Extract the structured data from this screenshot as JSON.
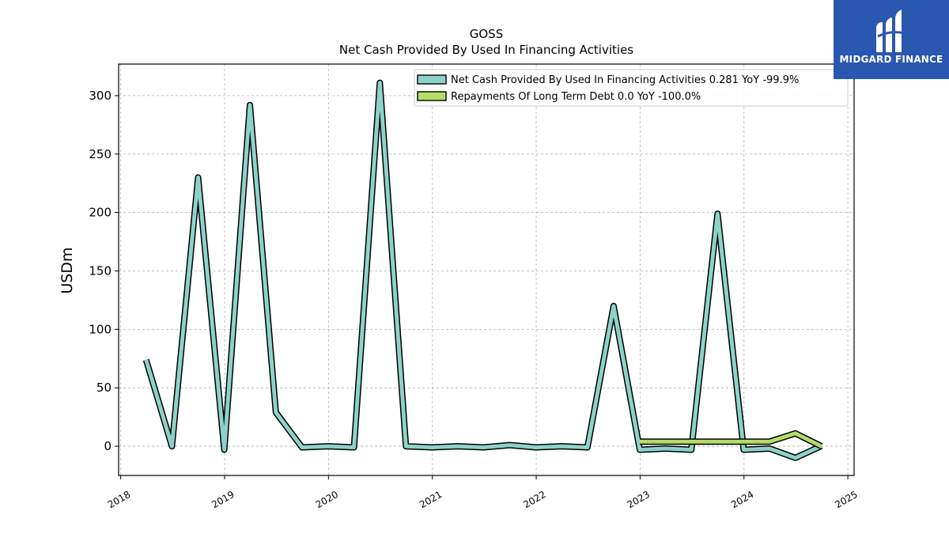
{
  "brand": {
    "name": "MIDGARD FINANCE",
    "bg_color": "#2a57b0"
  },
  "chart_data": {
    "type": "line",
    "title": "GOSS",
    "subtitle": "Net Cash Provided By Used In Financing Activities",
    "ylabel": "USDm",
    "xlabel": "",
    "xlim": [
      2017.98,
      2025.06
    ],
    "ylim": [
      -25,
      327
    ],
    "x_ticks": [
      "2018",
      "2019",
      "2020",
      "2021",
      "2022",
      "2023",
      "2024",
      "2025"
    ],
    "y_ticks": [
      "0",
      "50",
      "100",
      "150",
      "200",
      "250",
      "300"
    ],
    "grid": true,
    "legend_position": "top-right",
    "series": [
      {
        "name": "Net Cash Provided By Used In Financing Activities",
        "legend_label": "Net Cash Provided By Used In Financing Activities  0.281 YoY -99.9%",
        "color": "#8dd3c7",
        "points": [
          [
            "2018-03-31",
            74
          ],
          [
            "2018-06-30",
            0
          ],
          [
            "2018-09-30",
            230
          ],
          [
            "2018-12-31",
            -3
          ],
          [
            "2019-03-31",
            292
          ],
          [
            "2019-06-30",
            29
          ],
          [
            "2019-09-30",
            -1
          ],
          [
            "2019-12-31",
            0
          ],
          [
            "2020-03-31",
            -1
          ],
          [
            "2020-06-30",
            311
          ],
          [
            "2020-09-30",
            0
          ],
          [
            "2020-12-31",
            -1
          ],
          [
            "2021-03-31",
            0
          ],
          [
            "2021-06-30",
            -1
          ],
          [
            "2021-09-30",
            1
          ],
          [
            "2021-12-31",
            -1
          ],
          [
            "2022-03-31",
            0
          ],
          [
            "2022-06-30",
            -1
          ],
          [
            "2022-09-30",
            120
          ],
          [
            "2022-12-31",
            -3
          ],
          [
            "2023-03-31",
            -2
          ],
          [
            "2023-06-30",
            -3
          ],
          [
            "2023-09-30",
            199
          ],
          [
            "2023-12-31",
            -3
          ],
          [
            "2024-03-31",
            -2
          ],
          [
            "2024-06-30",
            -10
          ],
          [
            "2024-09-30",
            0.281
          ]
        ]
      },
      {
        "name": "Repayments Of Long Term Debt",
        "legend_label": "Repayments Of Long Term Debt  0.0 YoY -100.0%",
        "color": "#b3de69",
        "points": [
          [
            "2022-12-31",
            4
          ],
          [
            "2023-03-31",
            4
          ],
          [
            "2023-06-30",
            4
          ],
          [
            "2023-09-30",
            4
          ],
          [
            "2023-12-31",
            4
          ],
          [
            "2024-03-31",
            4
          ],
          [
            "2024-06-30",
            11
          ],
          [
            "2024-09-30",
            0
          ]
        ]
      }
    ]
  }
}
